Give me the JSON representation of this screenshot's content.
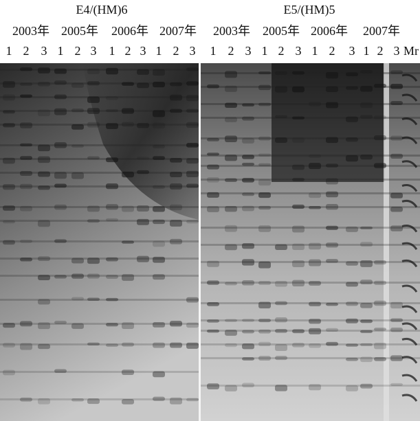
{
  "panels": [
    {
      "title": "E4/(HM)6",
      "years": [
        "2003年",
        "2005年",
        "2006年",
        "2007年"
      ],
      "lanes": [
        "1",
        "2",
        "3",
        "1",
        "2",
        "3",
        "1",
        "2",
        "3",
        "1",
        "2",
        "3"
      ]
    },
    {
      "title": "E5/(HM)5",
      "years": [
        "2003年",
        "2005年",
        "2006年",
        "2007年"
      ],
      "lanes": [
        "1",
        "2",
        "3",
        "1",
        "2",
        "3",
        "1",
        "2",
        "3",
        "1",
        "2",
        "3",
        "Mr"
      ]
    }
  ]
}
